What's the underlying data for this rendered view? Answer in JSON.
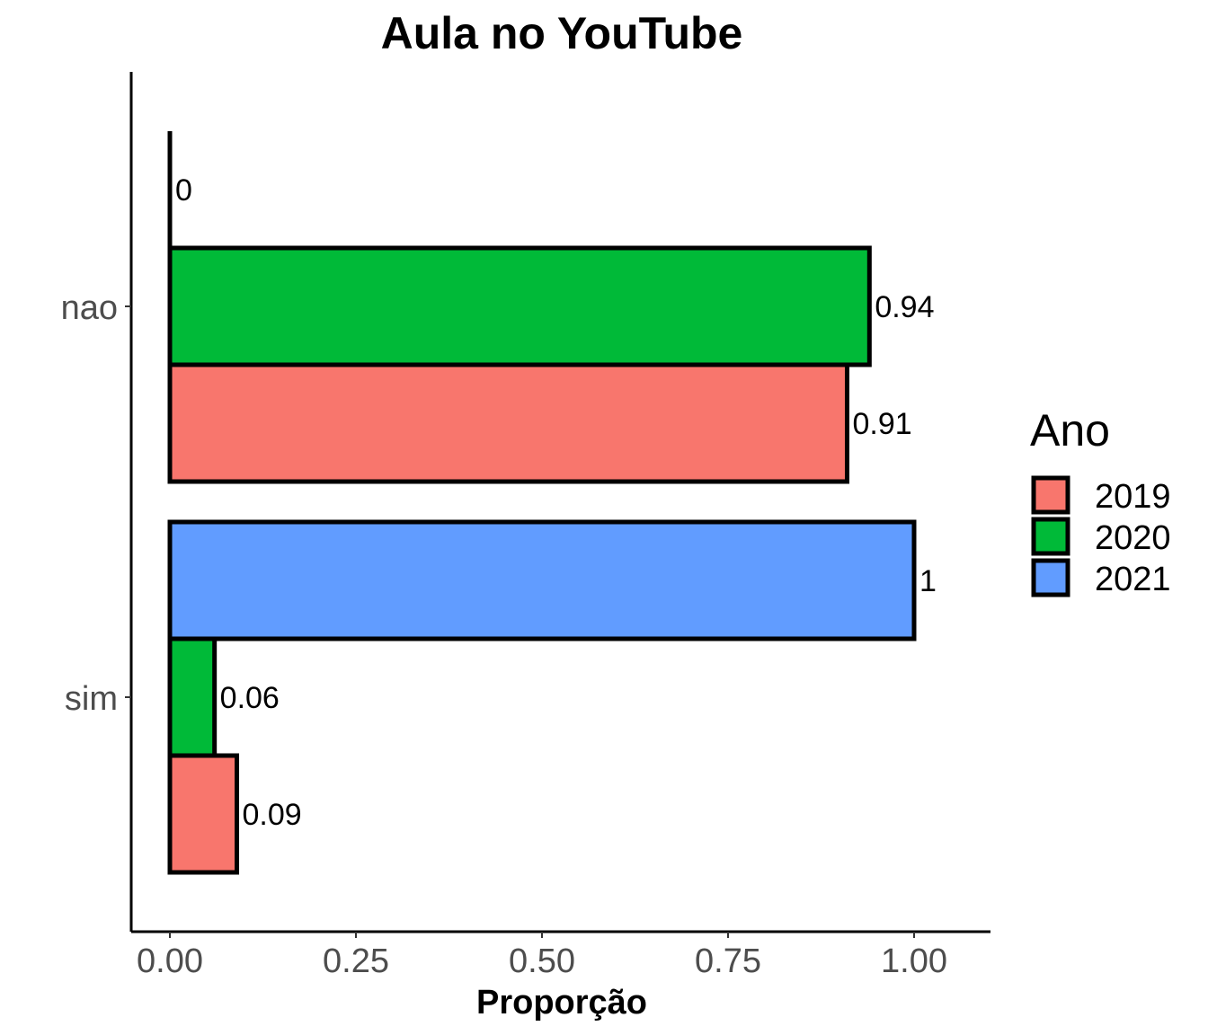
{
  "chart_data": {
    "type": "bar",
    "orientation": "horizontal",
    "title": "Aula no YouTube",
    "xlabel": "Proporção",
    "ylabel": "",
    "categories": [
      "nao",
      "sim"
    ],
    "xlim": [
      0,
      1
    ],
    "xticks": [
      0,
      0.25,
      0.5,
      0.75,
      1
    ],
    "xtick_labels": [
      "0.00",
      "0.25",
      "0.50",
      "0.75",
      "1.00"
    ],
    "legend": {
      "title": "Ano",
      "position": "right"
    },
    "series": [
      {
        "name": "2019",
        "color": "#F8766D",
        "values": [
          0.91,
          0.09
        ],
        "labels": [
          "0.91",
          "0.09"
        ]
      },
      {
        "name": "2020",
        "color": "#00BA38",
        "values": [
          0.94,
          0.06
        ],
        "labels": [
          "0.94",
          "0.06"
        ]
      },
      {
        "name": "2021",
        "color": "#619CFF",
        "values": [
          0,
          1
        ],
        "labels": [
          "0",
          "1"
        ]
      }
    ],
    "grid": false
  }
}
